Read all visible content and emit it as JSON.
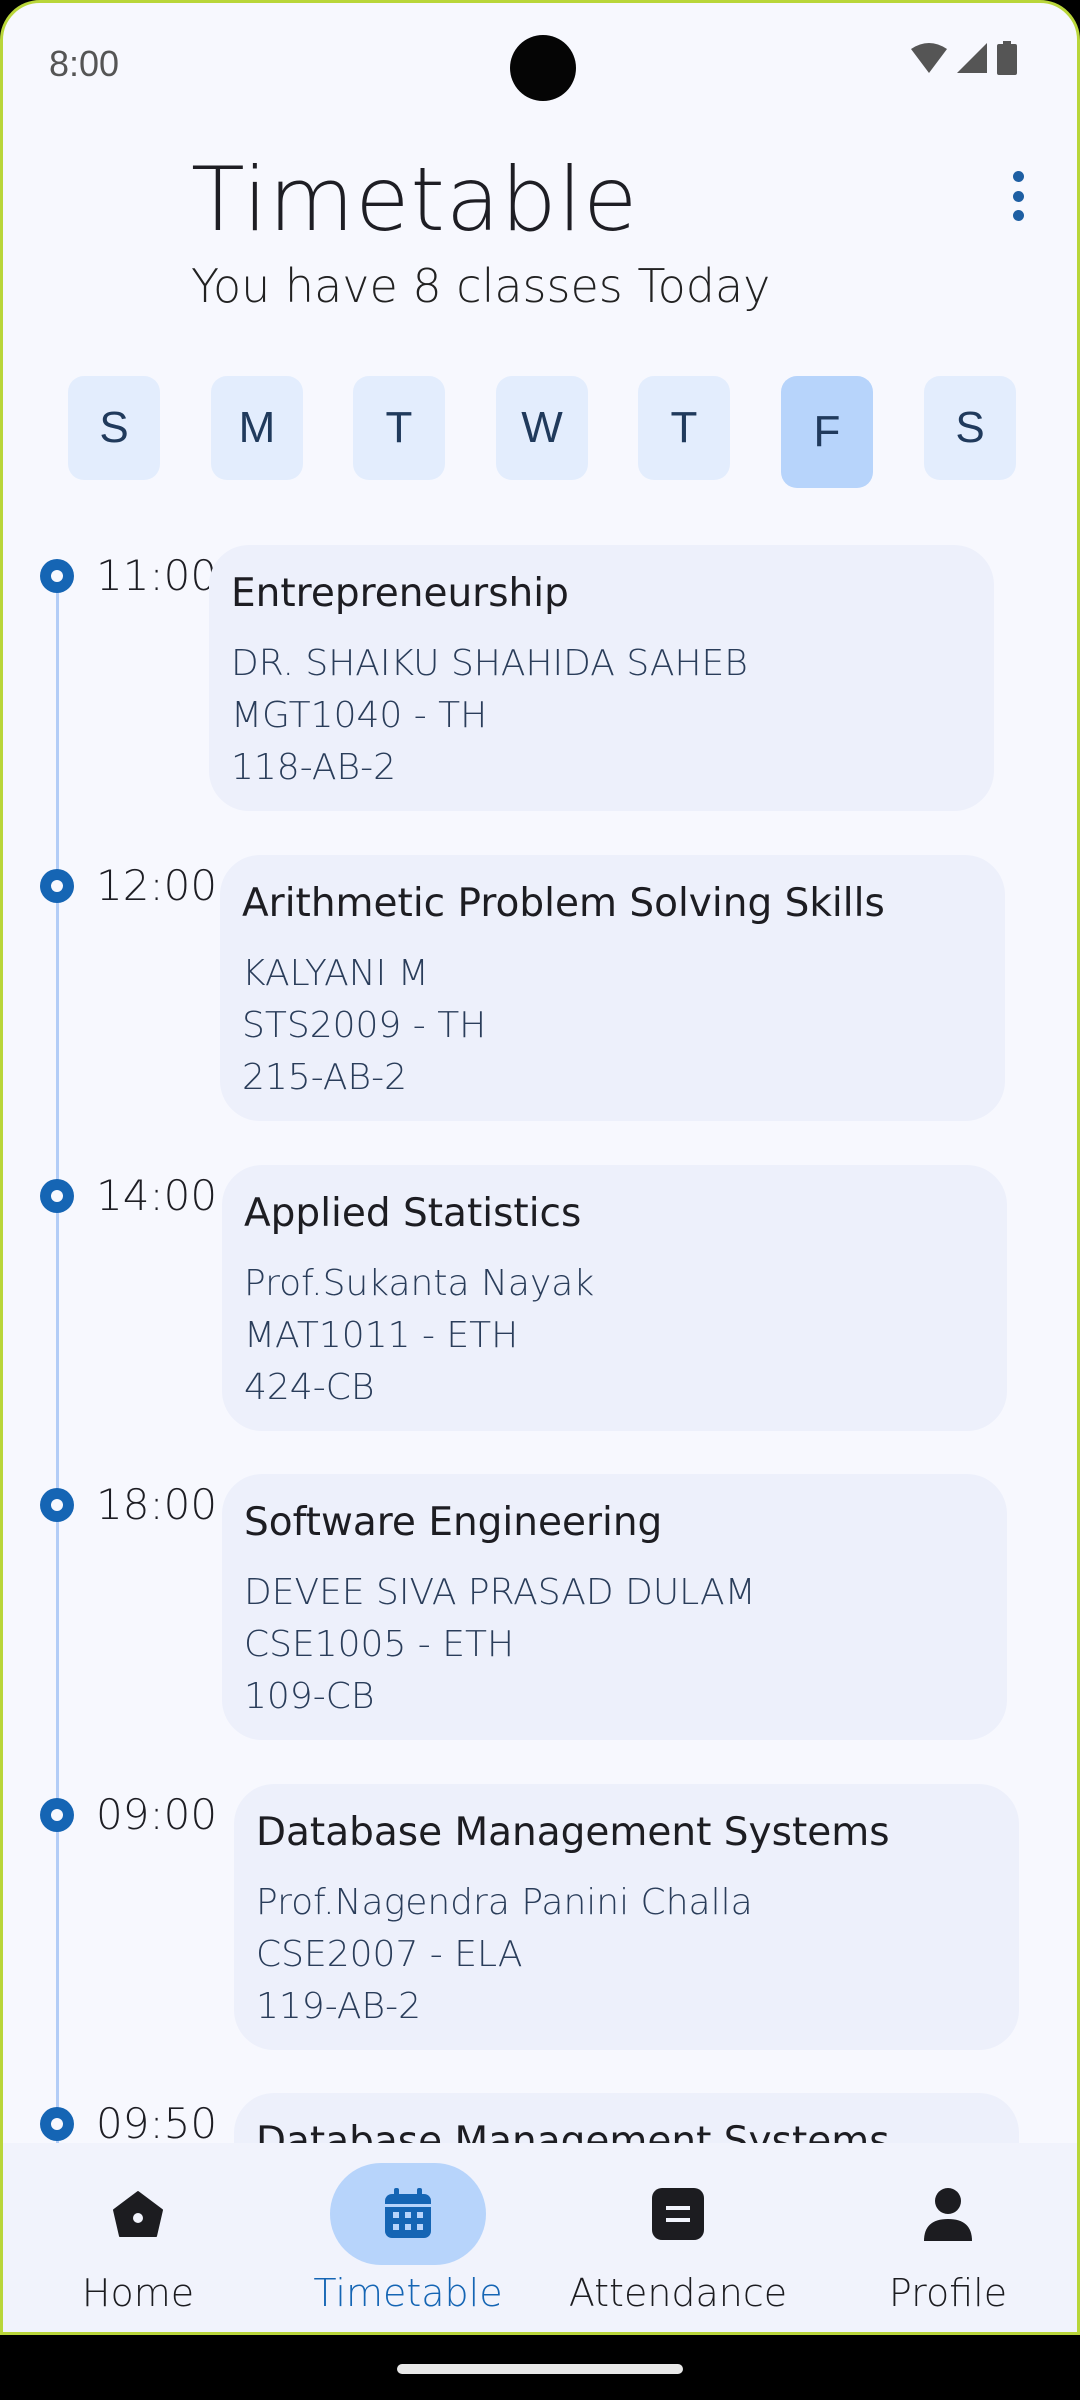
{
  "status_bar": {
    "time": "8:00"
  },
  "header": {
    "title": "Timetable",
    "subtitle": "You have 8 classes Today"
  },
  "days": [
    {
      "label": "S",
      "selected": false
    },
    {
      "label": "M",
      "selected": false
    },
    {
      "label": "T",
      "selected": false
    },
    {
      "label": "W",
      "selected": false
    },
    {
      "label": "T",
      "selected": false
    },
    {
      "label": "F",
      "selected": true
    },
    {
      "label": "S",
      "selected": false
    }
  ],
  "classes": [
    {
      "time": "11:00",
      "name": "Entrepreneurship",
      "faculty": "DR. SHAIKU SHAHIDA SAHEB",
      "code": "MGT1040 - TH",
      "room": "118-AB-2"
    },
    {
      "time": "12:00",
      "name": "Arithmetic Problem Solving Skills",
      "faculty": "KALYANI M",
      "code": "STS2009 - TH",
      "room": "215-AB-2"
    },
    {
      "time": "14:00",
      "name": "Applied Statistics",
      "faculty": "Prof.Sukanta Nayak",
      "code": "MAT1011 - ETH",
      "room": "424-CB"
    },
    {
      "time": "18:00",
      "name": "Software Engineering",
      "faculty": "DEVEE SIVA PRASAD DULAM",
      "code": "CSE1005 - ETH",
      "room": "109-CB"
    },
    {
      "time": "09:00",
      "name": "Database Management Systems",
      "faculty": "Prof.Nagendra Panini Challa",
      "code": "CSE2007 - ELA",
      "room": "119-AB-2"
    },
    {
      "time": "09:50",
      "name": "Database Management Systems",
      "faculty": "",
      "code": "",
      "room": ""
    }
  ],
  "nav": {
    "items": [
      {
        "label": "Home",
        "icon": "home-icon",
        "active": false
      },
      {
        "label": "Timetable",
        "icon": "calendar-icon",
        "active": true
      },
      {
        "label": "Attendance",
        "icon": "attendance-icon",
        "active": false
      },
      {
        "label": "Profile",
        "icon": "person-icon",
        "active": false
      }
    ]
  },
  "colors": {
    "accent": "#1565b4",
    "selected_bg": "#b7d4fb",
    "day_bg": "#e3edfd",
    "card_bg": "#edf0fb",
    "background": "#f7f8fe"
  }
}
